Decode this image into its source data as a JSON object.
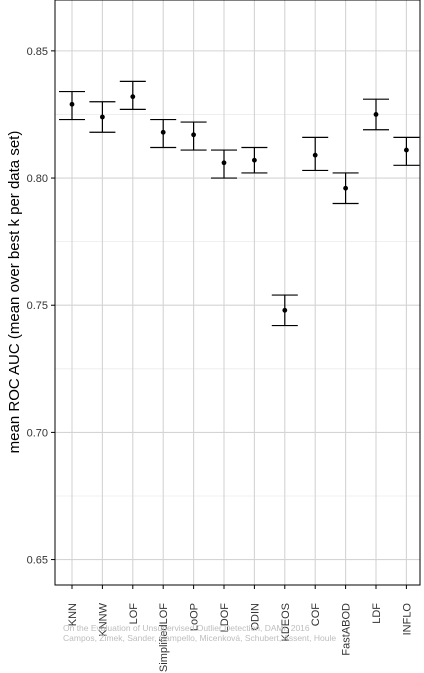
{
  "chart_data": {
    "type": "scatter",
    "ylabel": "mean ROC AUC (mean over best k per data set)",
    "xlabel": "",
    "ylim": [
      0.64,
      0.87
    ],
    "yticks": [
      0.65,
      0.7,
      0.75,
      0.8,
      0.85
    ],
    "ytick_labels": [
      "0.65",
      "0.70",
      "0.75",
      "0.80",
      "0.85"
    ],
    "grid": true,
    "error_bars": true,
    "categories": [
      "KNN",
      "KNNW",
      "LOF",
      "SimplifiedLOF",
      "LoOP",
      "LDOF",
      "ODIN",
      "KDEOS",
      "COF",
      "FastABOD",
      "LDF",
      "INFLO"
    ],
    "series": [
      {
        "means": [
          0.829,
          0.824,
          0.832,
          0.818,
          0.817,
          0.806,
          0.807,
          0.748,
          0.809,
          0.796,
          0.825,
          0.811
        ],
        "lower": [
          0.823,
          0.818,
          0.827,
          0.812,
          0.811,
          0.8,
          0.802,
          0.742,
          0.803,
          0.79,
          0.819,
          0.805
        ],
        "upper": [
          0.834,
          0.83,
          0.838,
          0.823,
          0.822,
          0.811,
          0.812,
          0.754,
          0.816,
          0.802,
          0.831,
          0.816
        ]
      }
    ],
    "colors": {
      "points": "#000000",
      "grid": "#d9d9d9",
      "axis": "#000000"
    }
  },
  "watermark": {
    "line1": "On the Evaluation of Unsupervised Outlier Detection, DAMI, 2016",
    "line2": "Campos, Zimek, Sander, Campello, Micenková, Schubert, Assent, Houle"
  }
}
